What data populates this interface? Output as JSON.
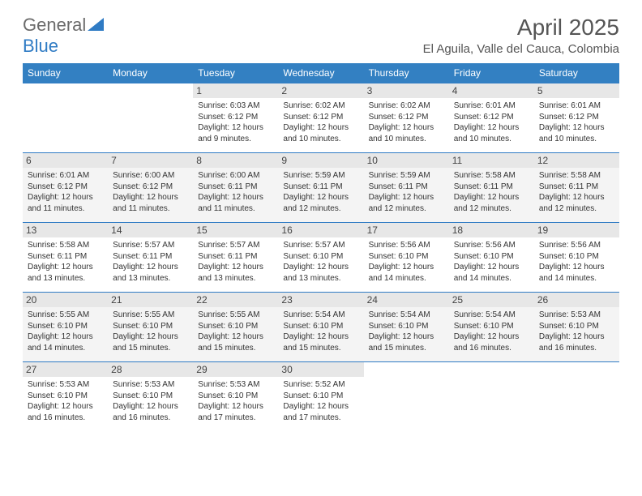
{
  "logo": {
    "part1": "General",
    "part2": "Blue"
  },
  "title": "April 2025",
  "location": "El Aguila, Valle del Cauca, Colombia",
  "colors": {
    "header_bg": "#3380c2",
    "header_text": "#ffffff",
    "border": "#2f7bc4",
    "daynum_bg": "#e7e7e7",
    "logo_gray": "#6b6b6b",
    "logo_blue": "#2f7bc4"
  },
  "weekdays": [
    "Sunday",
    "Monday",
    "Tuesday",
    "Wednesday",
    "Thursday",
    "Friday",
    "Saturday"
  ],
  "weeks": [
    [
      {
        "n": "",
        "sr": "",
        "ss": "",
        "dl": ""
      },
      {
        "n": "",
        "sr": "",
        "ss": "",
        "dl": ""
      },
      {
        "n": "1",
        "sr": "Sunrise: 6:03 AM",
        "ss": "Sunset: 6:12 PM",
        "dl": "Daylight: 12 hours and 9 minutes."
      },
      {
        "n": "2",
        "sr": "Sunrise: 6:02 AM",
        "ss": "Sunset: 6:12 PM",
        "dl": "Daylight: 12 hours and 10 minutes."
      },
      {
        "n": "3",
        "sr": "Sunrise: 6:02 AM",
        "ss": "Sunset: 6:12 PM",
        "dl": "Daylight: 12 hours and 10 minutes."
      },
      {
        "n": "4",
        "sr": "Sunrise: 6:01 AM",
        "ss": "Sunset: 6:12 PM",
        "dl": "Daylight: 12 hours and 10 minutes."
      },
      {
        "n": "5",
        "sr": "Sunrise: 6:01 AM",
        "ss": "Sunset: 6:12 PM",
        "dl": "Daylight: 12 hours and 10 minutes."
      }
    ],
    [
      {
        "n": "6",
        "sr": "Sunrise: 6:01 AM",
        "ss": "Sunset: 6:12 PM",
        "dl": "Daylight: 12 hours and 11 minutes."
      },
      {
        "n": "7",
        "sr": "Sunrise: 6:00 AM",
        "ss": "Sunset: 6:12 PM",
        "dl": "Daylight: 12 hours and 11 minutes."
      },
      {
        "n": "8",
        "sr": "Sunrise: 6:00 AM",
        "ss": "Sunset: 6:11 PM",
        "dl": "Daylight: 12 hours and 11 minutes."
      },
      {
        "n": "9",
        "sr": "Sunrise: 5:59 AM",
        "ss": "Sunset: 6:11 PM",
        "dl": "Daylight: 12 hours and 12 minutes."
      },
      {
        "n": "10",
        "sr": "Sunrise: 5:59 AM",
        "ss": "Sunset: 6:11 PM",
        "dl": "Daylight: 12 hours and 12 minutes."
      },
      {
        "n": "11",
        "sr": "Sunrise: 5:58 AM",
        "ss": "Sunset: 6:11 PM",
        "dl": "Daylight: 12 hours and 12 minutes."
      },
      {
        "n": "12",
        "sr": "Sunrise: 5:58 AM",
        "ss": "Sunset: 6:11 PM",
        "dl": "Daylight: 12 hours and 12 minutes."
      }
    ],
    [
      {
        "n": "13",
        "sr": "Sunrise: 5:58 AM",
        "ss": "Sunset: 6:11 PM",
        "dl": "Daylight: 12 hours and 13 minutes."
      },
      {
        "n": "14",
        "sr": "Sunrise: 5:57 AM",
        "ss": "Sunset: 6:11 PM",
        "dl": "Daylight: 12 hours and 13 minutes."
      },
      {
        "n": "15",
        "sr": "Sunrise: 5:57 AM",
        "ss": "Sunset: 6:11 PM",
        "dl": "Daylight: 12 hours and 13 minutes."
      },
      {
        "n": "16",
        "sr": "Sunrise: 5:57 AM",
        "ss": "Sunset: 6:10 PM",
        "dl": "Daylight: 12 hours and 13 minutes."
      },
      {
        "n": "17",
        "sr": "Sunrise: 5:56 AM",
        "ss": "Sunset: 6:10 PM",
        "dl": "Daylight: 12 hours and 14 minutes."
      },
      {
        "n": "18",
        "sr": "Sunrise: 5:56 AM",
        "ss": "Sunset: 6:10 PM",
        "dl": "Daylight: 12 hours and 14 minutes."
      },
      {
        "n": "19",
        "sr": "Sunrise: 5:56 AM",
        "ss": "Sunset: 6:10 PM",
        "dl": "Daylight: 12 hours and 14 minutes."
      }
    ],
    [
      {
        "n": "20",
        "sr": "Sunrise: 5:55 AM",
        "ss": "Sunset: 6:10 PM",
        "dl": "Daylight: 12 hours and 14 minutes."
      },
      {
        "n": "21",
        "sr": "Sunrise: 5:55 AM",
        "ss": "Sunset: 6:10 PM",
        "dl": "Daylight: 12 hours and 15 minutes."
      },
      {
        "n": "22",
        "sr": "Sunrise: 5:55 AM",
        "ss": "Sunset: 6:10 PM",
        "dl": "Daylight: 12 hours and 15 minutes."
      },
      {
        "n": "23",
        "sr": "Sunrise: 5:54 AM",
        "ss": "Sunset: 6:10 PM",
        "dl": "Daylight: 12 hours and 15 minutes."
      },
      {
        "n": "24",
        "sr": "Sunrise: 5:54 AM",
        "ss": "Sunset: 6:10 PM",
        "dl": "Daylight: 12 hours and 15 minutes."
      },
      {
        "n": "25",
        "sr": "Sunrise: 5:54 AM",
        "ss": "Sunset: 6:10 PM",
        "dl": "Daylight: 12 hours and 16 minutes."
      },
      {
        "n": "26",
        "sr": "Sunrise: 5:53 AM",
        "ss": "Sunset: 6:10 PM",
        "dl": "Daylight: 12 hours and 16 minutes."
      }
    ],
    [
      {
        "n": "27",
        "sr": "Sunrise: 5:53 AM",
        "ss": "Sunset: 6:10 PM",
        "dl": "Daylight: 12 hours and 16 minutes."
      },
      {
        "n": "28",
        "sr": "Sunrise: 5:53 AM",
        "ss": "Sunset: 6:10 PM",
        "dl": "Daylight: 12 hours and 16 minutes."
      },
      {
        "n": "29",
        "sr": "Sunrise: 5:53 AM",
        "ss": "Sunset: 6:10 PM",
        "dl": "Daylight: 12 hours and 17 minutes."
      },
      {
        "n": "30",
        "sr": "Sunrise: 5:52 AM",
        "ss": "Sunset: 6:10 PM",
        "dl": "Daylight: 12 hours and 17 minutes."
      },
      {
        "n": "",
        "sr": "",
        "ss": "",
        "dl": ""
      },
      {
        "n": "",
        "sr": "",
        "ss": "",
        "dl": ""
      },
      {
        "n": "",
        "sr": "",
        "ss": "",
        "dl": ""
      }
    ]
  ]
}
